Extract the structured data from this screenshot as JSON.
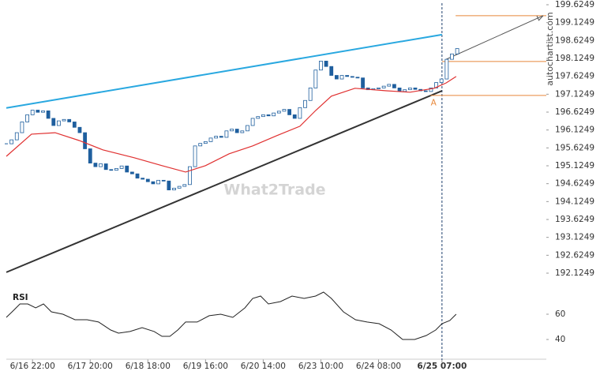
{
  "chart_data": [
    {
      "type": "candlestick",
      "xlim": [
        0,
        103
      ],
      "ylim": [
        192.1249,
        199.6249
      ],
      "yticks": [
        199.6249,
        199.1249,
        198.6249,
        198.1249,
        197.6249,
        197.1249,
        196.6249,
        196.1249,
        195.6249,
        195.1249,
        194.6249,
        194.1249,
        193.6249,
        193.1249,
        192.6249,
        192.1249
      ],
      "watermark": "What2Trade",
      "source": "autochartist.com",
      "series": [
        {
          "color": "#1f5f9e",
          "values": [
            195.74,
            195.85,
            196.05,
            196.35,
            196.55,
            196.68,
            196.62,
            196.66,
            196.45,
            196.25,
            196.38,
            196.42,
            196.35,
            196.2,
            196.05,
            195.6,
            195.2,
            195.1,
            195.18,
            195.02,
            195.0,
            195.05,
            195.12,
            194.95,
            194.9,
            194.78,
            194.75,
            194.68,
            194.62,
            194.72,
            194.7,
            194.45,
            194.5,
            194.55,
            194.6,
            195.1,
            195.68,
            195.75,
            195.8,
            195.9,
            195.95,
            195.92,
            196.1,
            196.15,
            196.05,
            196.1,
            196.25,
            196.45,
            196.5,
            196.55,
            196.52,
            196.6,
            196.65,
            196.7,
            196.55,
            196.45,
            196.75,
            196.95,
            197.3,
            197.8,
            198.05,
            197.9,
            197.65,
            197.55,
            197.65,
            197.62,
            197.6,
            197.58,
            197.3,
            197.25,
            197.28,
            197.3,
            197.35,
            197.4,
            197.3,
            197.2,
            197.25,
            197.3,
            197.26,
            197.22,
            197.2,
            197.3,
            197.45,
            197.55,
            198.1,
            198.25,
            198.4
          ]
        },
        {
          "color": "#e03030",
          "x": [
            0,
            4.8,
            9.3,
            13.9,
            18.4,
            24.4,
            29.7,
            34.2,
            38,
            42.5,
            47,
            51.5,
            56,
            59,
            62,
            66.5,
            72.5,
            77,
            81.6,
            83.9,
            85.8
          ],
          "values": [
            195.39,
            196.01,
            196.05,
            195.83,
            195.57,
            195.35,
            195.13,
            194.95,
            195.13,
            195.46,
            195.68,
            195.96,
            196.23,
            196.67,
            197.07,
            197.29,
            197.22,
            197.18,
            197.29,
            197.44,
            197.62
          ]
        }
      ],
      "trendlines": [
        {
          "color": "#29a8e0",
          "x": [
            0,
            83.1
          ],
          "y": [
            196.74,
            198.79
          ]
        },
        {
          "color": "#333333",
          "x": [
            0,
            83.1
          ],
          "y": [
            192.15,
            197.22
          ]
        }
      ],
      "levels": [
        {
          "color": "#e8883a",
          "x": [
            85.7,
            103
          ],
          "y": 199.32
        },
        {
          "color": "#e8883a",
          "x": [
            83.1,
            103
          ],
          "y": 198.04
        },
        {
          "color": "#e8883a",
          "x": [
            80.9,
            103
          ],
          "y": 197.09
        }
      ],
      "arrow": {
        "color": "#555555",
        "x": [
          83.9,
          102.4
        ],
        "y": [
          198.1,
          199.32
        ]
      },
      "marker_x": 83.1,
      "point_label": {
        "text": "A",
        "x": 81.5,
        "y": 196.88,
        "color": "#e8883a"
      }
    },
    {
      "type": "line",
      "title": "RSI",
      "xlim": [
        0,
        103
      ],
      "ylim": [
        25,
        80
      ],
      "yticks": [
        60,
        40
      ],
      "xticks": [
        {
          "value": 5,
          "label": "6/16 22:00"
        },
        {
          "value": 16,
          "label": "6/17 20:00"
        },
        {
          "value": 27,
          "label": "6/18 18:00"
        },
        {
          "value": 38,
          "label": "6/19 16:00"
        },
        {
          "value": 49,
          "label": "6/20 14:00"
        },
        {
          "value": 60,
          "label": "6/23 10:00"
        },
        {
          "value": 71,
          "label": "6/24 08:00"
        },
        {
          "value": 83.1,
          "label": "6/25 07:00"
        }
      ],
      "series": [
        {
          "color": "#222222",
          "x": [
            0,
            1.1,
            2.6,
            4.1,
            5.6,
            7.1,
            8.6,
            10.8,
            13.1,
            15.4,
            17.6,
            19.9,
            21.4,
            23.6,
            25.9,
            28.2,
            29.7,
            31.2,
            32.7,
            34.2,
            36.4,
            38.7,
            40.9,
            43.2,
            45.5,
            47,
            48.5,
            50,
            52.3,
            54.5,
            56.8,
            59,
            60.5,
            62,
            64.3,
            66.6,
            68.8,
            71.1,
            73.4,
            75.6,
            77.9,
            80.1,
            81.9,
            83.1,
            84.6,
            85.8
          ],
          "values": [
            57.5,
            61.9,
            68.1,
            68.1,
            65,
            68.1,
            61.9,
            60,
            55.6,
            55.6,
            53.8,
            47.5,
            45,
            46.3,
            49.4,
            46.3,
            42.5,
            42.5,
            47.5,
            53.8,
            53.8,
            58.8,
            60,
            57.5,
            65,
            72.5,
            74.4,
            68.1,
            70,
            74.4,
            72.5,
            74.4,
            77.5,
            72.5,
            61.9,
            55.6,
            53.8,
            52.5,
            47.5,
            40,
            40,
            43.1,
            47.5,
            52.5,
            55,
            60
          ]
        }
      ]
    }
  ]
}
